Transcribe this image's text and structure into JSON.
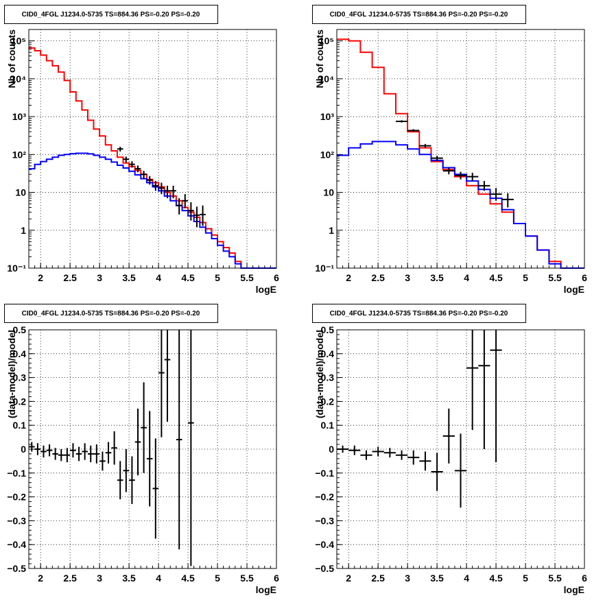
{
  "colors": {
    "total_model": "#ff0000",
    "source_model": "#0000ff",
    "data": "#000000",
    "grid": "#000000"
  },
  "chart_data": [
    {
      "type": "line",
      "title": "CID0_4FGL J1234.0-5735 TS=884.36 PS=-0.20 PS=-0.20",
      "xlabel": "logE",
      "ylabel": "Nb of counts",
      "log_y": true,
      "xlim": [
        1.8,
        6.0
      ],
      "ylim": [
        0.1,
        200000
      ],
      "grid": true,
      "x_ticks": [
        "2",
        "2.5",
        "3",
        "3.5",
        "4",
        "4.5",
        "5",
        "5.5",
        "6"
      ],
      "y_ticks": [
        "10⁻¹",
        "1",
        "10",
        "10²",
        "10³",
        "10⁴",
        "10⁵"
      ],
      "series": [
        {
          "style": "step",
          "color": "#ff0000",
          "bin_edges": [
            1.8,
            1.9,
            2.0,
            2.1,
            2.2,
            2.3,
            2.4,
            2.5,
            2.6,
            2.7,
            2.8,
            2.9,
            3.0,
            3.1,
            3.2,
            3.3,
            3.4,
            3.5,
            3.6,
            3.7,
            3.8,
            3.9,
            4.0,
            4.1,
            4.2,
            4.3,
            4.4,
            4.5,
            4.6,
            4.7,
            4.8,
            4.9,
            5.0,
            5.1,
            5.2,
            5.3,
            5.4,
            5.5,
            5.6,
            5.7,
            5.8,
            5.9,
            6.0
          ],
          "values": [
            65000,
            55000,
            42000,
            30000,
            22000,
            15000,
            9000,
            4500,
            2600,
            1500,
            800,
            470,
            310,
            180,
            125,
            85,
            60,
            48,
            38,
            30,
            22,
            18,
            14,
            10,
            8,
            6,
            4,
            3,
            2.2,
            1.6,
            1.1,
            0.75,
            0.5,
            0.35,
            0.25,
            0.15,
            0.1,
            0.1,
            0.1,
            0.1,
            0.1,
            0.1
          ]
        },
        {
          "style": "step",
          "color": "#0000ff",
          "bin_edges": [
            1.8,
            1.9,
            2.0,
            2.1,
            2.2,
            2.3,
            2.4,
            2.5,
            2.6,
            2.7,
            2.8,
            2.9,
            3.0,
            3.1,
            3.2,
            3.3,
            3.4,
            3.5,
            3.6,
            3.7,
            3.8,
            3.9,
            4.0,
            4.1,
            4.2,
            4.3,
            4.4,
            4.5,
            4.6,
            4.7,
            4.8,
            4.9,
            5.0,
            5.1,
            5.2,
            5.3,
            5.4,
            5.5,
            5.6,
            5.7,
            5.8,
            5.9,
            6.0
          ],
          "values": [
            42,
            55,
            65,
            75,
            85,
            95,
            100,
            105,
            108,
            108,
            104,
            95,
            85,
            75,
            63,
            52,
            44,
            36,
            29,
            23,
            18,
            14,
            11,
            8,
            6,
            4.5,
            3.3,
            2.4,
            1.7,
            1.2,
            0.85,
            0.6,
            0.4,
            0.28,
            0.2,
            0.13,
            0.1,
            0.1,
            0.1,
            0.1,
            0.1,
            0.1
          ]
        },
        {
          "style": "points",
          "color": "#000000",
          "points": [
            {
              "x": 3.35,
              "y": 140,
              "lo": 120,
              "hi": 160
            },
            {
              "x": 3.45,
              "y": 75,
              "lo": 62,
              "hi": 88
            },
            {
              "x": 3.55,
              "y": 55,
              "lo": 45,
              "hi": 66
            },
            {
              "x": 3.65,
              "y": 42,
              "lo": 34,
              "hi": 51
            },
            {
              "x": 3.75,
              "y": 30,
              "lo": 23,
              "hi": 37
            },
            {
              "x": 3.85,
              "y": 21,
              "lo": 16,
              "hi": 27
            },
            {
              "x": 3.95,
              "y": 15,
              "lo": 11,
              "hi": 20
            },
            {
              "x": 4.05,
              "y": 13,
              "lo": 9,
              "hi": 18
            },
            {
              "x": 4.15,
              "y": 11,
              "lo": 7,
              "hi": 15
            },
            {
              "x": 4.25,
              "y": 11,
              "lo": 7,
              "hi": 15
            },
            {
              "x": 4.35,
              "y": 4.5,
              "lo": 2.6,
              "hi": 7
            },
            {
              "x": 4.45,
              "y": 6,
              "lo": 3.8,
              "hi": 9
            },
            {
              "x": 4.55,
              "y": 3.3,
              "lo": 1.8,
              "hi": 5.5
            },
            {
              "x": 4.65,
              "y": 2.5,
              "lo": 1.2,
              "hi": 4.2
            },
            {
              "x": 4.75,
              "y": 2.6,
              "lo": 1.3,
              "hi": 4.5
            }
          ]
        }
      ]
    },
    {
      "type": "line",
      "title": "CID0_4FGL J1234.0-5735 TS=884.36 PS=-0.20 PS=-0.20",
      "xlabel": "logE",
      "ylabel": "Nb of counts",
      "log_y": true,
      "xlim": [
        1.8,
        6.0
      ],
      "ylim": [
        0.1,
        200000
      ],
      "grid": true,
      "x_ticks": [
        "2",
        "2.5",
        "3",
        "3.5",
        "4",
        "4.5",
        "5",
        "5.5",
        "6"
      ],
      "y_ticks": [
        "10⁻¹",
        "1",
        "10",
        "10²",
        "10³",
        "10⁴",
        "10⁵"
      ],
      "series": [
        {
          "style": "step",
          "color": "#ff0000",
          "bin_edges": [
            1.8,
            2.0,
            2.2,
            2.4,
            2.6,
            2.8,
            3.0,
            3.2,
            3.4,
            3.6,
            3.8,
            4.0,
            4.2,
            4.4,
            4.6,
            4.8,
            5.0,
            5.2,
            5.4,
            5.6,
            5.8,
            6.0
          ],
          "values": [
            110000,
            100000,
            50000,
            20000,
            4000,
            1200,
            400,
            150,
            65,
            40,
            26,
            15,
            9,
            5,
            3,
            1.5,
            0.7,
            0.3,
            0.15,
            0.1,
            0.1
          ]
        },
        {
          "style": "step",
          "color": "#0000ff",
          "bin_edges": [
            1.8,
            2.0,
            2.2,
            2.4,
            2.6,
            2.8,
            3.0,
            3.2,
            3.4,
            3.6,
            3.8,
            4.0,
            4.2,
            4.4,
            4.6,
            4.8,
            5.0,
            5.2,
            5.4,
            5.6,
            5.8,
            6.0
          ],
          "values": [
            95,
            150,
            190,
            220,
            220,
            180,
            140,
            100,
            70,
            45,
            30,
            20,
            12,
            7,
            3.5,
            1.5,
            0.7,
            0.3,
            0.13,
            0.1,
            0.1
          ]
        },
        {
          "style": "points",
          "color": "#000000",
          "points": [
            {
              "x": 2.9,
              "y": 750,
              "lo": 700,
              "hi": 800
            },
            {
              "x": 3.1,
              "y": 430,
              "lo": 395,
              "hi": 465
            },
            {
              "x": 3.3,
              "y": 170,
              "lo": 150,
              "hi": 190
            },
            {
              "x": 3.5,
              "y": 80,
              "lo": 68,
              "hi": 92
            },
            {
              "x": 3.7,
              "y": 37,
              "lo": 30,
              "hi": 45
            },
            {
              "x": 3.9,
              "y": 28,
              "lo": 22,
              "hi": 35
            },
            {
              "x": 4.1,
              "y": 26,
              "lo": 20,
              "hi": 33
            },
            {
              "x": 4.3,
              "y": 15,
              "lo": 11,
              "hi": 20
            },
            {
              "x": 4.5,
              "y": 9,
              "lo": 6,
              "hi": 13
            },
            {
              "x": 4.7,
              "y": 6.5,
              "lo": 4,
              "hi": 9.5
            }
          ]
        }
      ]
    },
    {
      "type": "scatter",
      "title": "CID0_4FGL J1234.0-5735 TS=884.36 PS=-0.20 PS=-0.20",
      "xlabel": "logE",
      "ylabel": "(data-model)/model",
      "xlim": [
        1.8,
        6.0
      ],
      "ylim": [
        -0.5,
        0.5
      ],
      "grid": true,
      "x_ticks": [
        "2",
        "2.5",
        "3",
        "3.5",
        "4",
        "4.5",
        "5",
        "5.5",
        "6"
      ],
      "y_ticks": [
        "−0.5",
        "−0.4",
        "−0.3",
        "−0.2",
        "−0.1",
        "0",
        "0.1",
        "0.2",
        "0.3",
        "0.4",
        "0.5"
      ],
      "bin_half_width": 0.05,
      "points": [
        {
          "x": 1.85,
          "y": 0.01,
          "err": 0.02
        },
        {
          "x": 1.95,
          "y": 0.0,
          "err": 0.025
        },
        {
          "x": 2.05,
          "y": -0.01,
          "err": 0.025
        },
        {
          "x": 2.15,
          "y": -0.005,
          "err": 0.025
        },
        {
          "x": 2.25,
          "y": -0.02,
          "err": 0.025
        },
        {
          "x": 2.35,
          "y": -0.025,
          "err": 0.025
        },
        {
          "x": 2.45,
          "y": -0.025,
          "err": 0.03
        },
        {
          "x": 2.55,
          "y": -0.005,
          "err": 0.03
        },
        {
          "x": 2.65,
          "y": -0.02,
          "err": 0.03
        },
        {
          "x": 2.75,
          "y": -0.01,
          "err": 0.035
        },
        {
          "x": 2.85,
          "y": -0.02,
          "err": 0.035
        },
        {
          "x": 2.95,
          "y": -0.02,
          "err": 0.04
        },
        {
          "x": 3.05,
          "y": -0.05,
          "err": 0.04
        },
        {
          "x": 3.15,
          "y": -0.015,
          "err": 0.045
        },
        {
          "x": 3.25,
          "y": 0.005,
          "err": 0.07
        },
        {
          "x": 3.35,
          "y": -0.13,
          "err": 0.08
        },
        {
          "x": 3.45,
          "y": -0.09,
          "err": 0.09
        },
        {
          "x": 3.55,
          "y": -0.13,
          "err": 0.1
        },
        {
          "x": 3.65,
          "y": 0.03,
          "err": 0.14
        },
        {
          "x": 3.75,
          "y": 0.09,
          "err": 0.19
        },
        {
          "x": 3.85,
          "y": -0.04,
          "err": 0.2
        },
        {
          "x": 3.95,
          "y": -0.165,
          "err": 0.21
        },
        {
          "x": 4.05,
          "y": 0.32,
          "err": 0.27
        },
        {
          "x": 4.15,
          "y": 0.375,
          "err": 0.26
        },
        {
          "x": 4.35,
          "y": 0.04,
          "err": 0.46
        },
        {
          "x": 4.55,
          "y": 0.11,
          "err": 0.6
        }
      ]
    },
    {
      "type": "scatter",
      "title": "CID0_4FGL J1234.0-5735 TS=884.36 PS=-0.20 PS=-0.20",
      "xlabel": "logE",
      "ylabel": "(data-model)/model",
      "xlim": [
        1.8,
        6.0
      ],
      "ylim": [
        -0.5,
        0.5
      ],
      "grid": true,
      "x_ticks": [
        "2",
        "2.5",
        "3",
        "3.5",
        "4",
        "4.5",
        "5",
        "5.5",
        "6"
      ],
      "y_ticks": [
        "−0.5",
        "−0.4",
        "−0.3",
        "−0.2",
        "−0.1",
        "0",
        "0.1",
        "0.2",
        "0.3",
        "0.4",
        "0.5"
      ],
      "bin_half_width": 0.1,
      "points": [
        {
          "x": 1.9,
          "y": 0.0,
          "err": 0.015
        },
        {
          "x": 2.1,
          "y": -0.005,
          "err": 0.02
        },
        {
          "x": 2.3,
          "y": -0.025,
          "err": 0.02
        },
        {
          "x": 2.5,
          "y": -0.01,
          "err": 0.02
        },
        {
          "x": 2.7,
          "y": -0.015,
          "err": 0.02
        },
        {
          "x": 2.9,
          "y": -0.025,
          "err": 0.02
        },
        {
          "x": 3.1,
          "y": -0.035,
          "err": 0.03
        },
        {
          "x": 3.3,
          "y": -0.05,
          "err": 0.04
        },
        {
          "x": 3.5,
          "y": -0.095,
          "err": 0.08
        },
        {
          "x": 3.7,
          "y": 0.055,
          "err": 0.115
        },
        {
          "x": 3.9,
          "y": -0.09,
          "err": 0.155
        },
        {
          "x": 4.1,
          "y": 0.34,
          "err": 0.26
        },
        {
          "x": 4.3,
          "y": 0.35,
          "err": 0.35
        },
        {
          "x": 4.5,
          "y": 0.415,
          "err": 0.47
        }
      ]
    }
  ]
}
